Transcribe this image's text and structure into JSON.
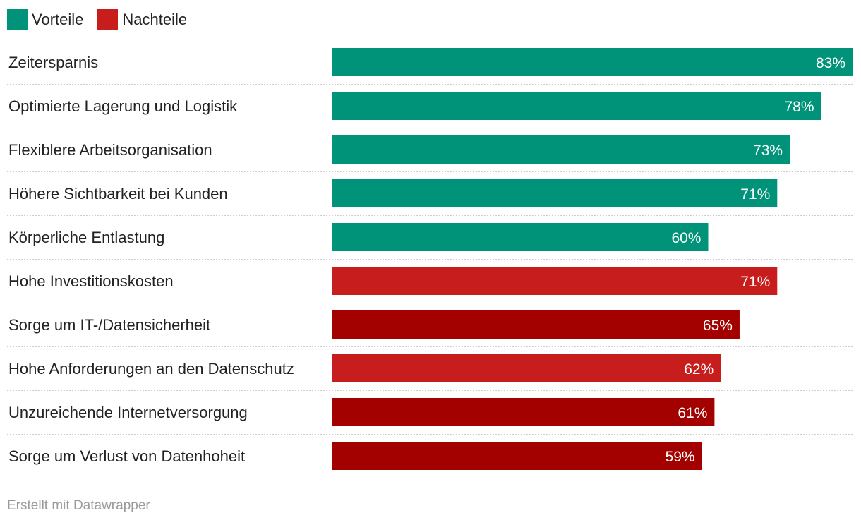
{
  "chart_data": {
    "type": "bar",
    "orientation": "horizontal",
    "legend": [
      {
        "name": "Vorteile",
        "color": "#009379"
      },
      {
        "name": "Nachteile",
        "color": "#c71e1d"
      }
    ],
    "categories": [
      "Zeitersparnis",
      "Optimierte Lagerung und Logistik",
      "Flexiblere Arbeitsorganisation",
      "Höhere Sichtbarkeit bei Kunden",
      "Körperliche Entlastung",
      "Hohe Investitionskosten",
      "Sorge um IT-/Datensicherheit",
      "Hohe Anforderungen an den Datenschutz",
      "Unzureichende Internetversorgung",
      "Sorge um Verlust von Datenhoheit"
    ],
    "values": [
      83,
      78,
      73,
      71,
      60,
      71,
      65,
      62,
      61,
      59
    ],
    "value_labels": [
      "83%",
      "78%",
      "73%",
      "71%",
      "60%",
      "71%",
      "65%",
      "62%",
      "61%",
      "59%"
    ],
    "colors": [
      "#009379",
      "#009379",
      "#009379",
      "#009379",
      "#009379",
      "#c71e1d",
      "#a30000",
      "#c71e1d",
      "#a30000",
      "#a30000"
    ],
    "xlim": [
      0,
      83
    ],
    "grid": false,
    "legend_position": "top-left"
  },
  "footer": "Erstellt mit Datawrapper"
}
